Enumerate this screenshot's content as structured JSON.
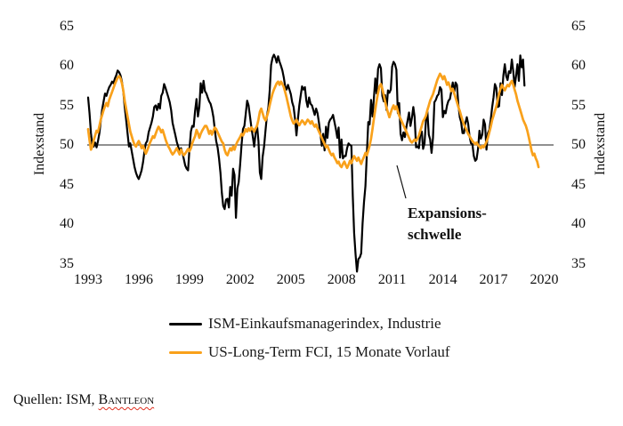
{
  "chart": {
    "annotation": {
      "line1": "Expansions-",
      "line2": "schwelle"
    },
    "legend": [
      {
        "label": "ISM-Einkaufsmanagerindex, Industrie",
        "color": "#000000"
      },
      {
        "label": "US-Long-Term FCI, 15 Monate Vorlauf",
        "color": "#F9A11B"
      }
    ],
    "source_prefix": "Quellen: ISM, ",
    "source_brand": "Bantleon"
  },
  "chart_data": {
    "type": "line",
    "title": "",
    "ylabel_left": "Indexstand",
    "ylabel_right": "Indexstand",
    "ylim": [
      35,
      65
    ],
    "xlim": [
      1993,
      2020.6
    ],
    "grid": false,
    "threshold": 50,
    "threshold_label": "Expansionsschwelle",
    "y_ticks": [
      65,
      60,
      55,
      50,
      45,
      40,
      35
    ],
    "x_ticks": [
      1993,
      1996,
      1999,
      2002,
      2005,
      2008,
      2011,
      2014,
      2017,
      2020
    ],
    "frequency": "monthly",
    "x_start": 1993.0,
    "series": [
      {
        "id": "ism",
        "name": "ISM-Einkaufsmanagerindex, Industrie",
        "color": "#000000",
        "start": "1993-01",
        "end": "2018-11",
        "values": [
          56.0,
          54.0,
          51.5,
          50.0,
          49.8,
          50.3,
          49.7,
          50.5,
          51.5,
          53.0,
          54.5,
          55.5,
          56.5,
          56.2,
          56.8,
          57.3,
          57.6,
          58.0,
          57.8,
          58.4,
          58.8,
          59.4,
          59.2,
          58.8,
          58.0,
          56.8,
          54.8,
          53.2,
          51.5,
          49.8,
          50.2,
          49.2,
          48.2,
          47.2,
          46.5,
          46.0,
          45.7,
          46.2,
          46.8,
          47.8,
          49.2,
          50.2,
          50.5,
          51.6,
          52.2,
          52.8,
          53.6,
          54.8,
          55.0,
          54.4,
          55.2,
          54.6,
          56.2,
          56.6,
          57.7,
          57.2,
          56.6,
          56.0,
          55.4,
          54.4,
          52.8,
          52.0,
          51.2,
          50.4,
          49.8,
          49.2,
          49.6,
          49.0,
          48.2,
          47.4,
          47.0,
          46.8,
          49.5,
          51.7,
          52.4,
          52.3,
          54.3,
          55.8,
          53.6,
          54.8,
          57.8,
          56.6,
          58.1,
          56.8,
          56.5,
          56.0,
          55.5,
          55.2,
          54.5,
          53.5,
          52.0,
          50.5,
          49.7,
          48.3,
          46.5,
          43.9,
          42.3,
          41.9,
          43.1,
          43.2,
          42.1,
          44.7,
          43.6,
          47.0,
          46.2,
          40.8,
          44.5,
          45.3,
          47.5,
          50.0,
          52.0,
          52.4,
          53.9,
          55.6,
          55.0,
          53.6,
          52.2,
          51.0,
          49.8,
          51.5,
          52.5,
          50.5,
          46.5,
          45.7,
          48.5,
          49.8,
          51.8,
          53.7,
          54.7,
          56.8,
          60.1,
          61.0,
          61.4,
          61.0,
          60.4,
          61.2,
          60.5,
          60.0,
          59.4,
          58.5,
          57.4,
          57.0,
          57.6,
          57.0,
          56.4,
          55.4,
          54.8,
          53.3,
          51.2,
          53.2,
          55.0,
          56.2,
          57.4,
          57.0,
          57.3,
          55.6,
          54.8,
          56.0,
          55.2,
          55.0,
          54.4,
          53.8,
          54.6,
          54.0,
          52.8,
          51.4,
          49.9,
          51.4,
          49.3,
          52.3,
          50.9,
          52.8,
          53.2,
          53.4,
          53.8,
          52.9,
          52.0,
          50.9,
          52.2,
          48.4,
          50.7,
          48.3,
          48.6,
          48.6,
          49.6,
          50.2,
          50.0,
          49.9,
          43.5,
          38.9,
          36.2,
          34.0,
          35.6,
          35.8,
          36.3,
          40.1,
          42.8,
          44.8,
          48.9,
          52.9,
          52.6,
          55.7,
          53.6,
          55.9,
          58.4,
          56.5,
          59.6,
          60.2,
          59.7,
          56.2,
          55.5,
          56.3,
          54.4,
          56.9,
          56.6,
          57.0,
          59.9,
          60.5,
          60.2,
          59.5,
          54.0,
          55.3,
          51.4,
          50.6,
          51.6,
          51.0,
          52.2,
          53.1,
          54.1,
          52.4,
          53.4,
          54.8,
          53.5,
          49.7,
          49.8,
          49.6,
          51.5,
          51.7,
          49.5,
          50.2,
          53.1,
          54.2,
          51.3,
          50.7,
          49.0,
          50.9,
          55.4,
          55.7,
          56.2,
          56.4,
          57.3,
          57.0,
          53.5,
          54.3,
          54.0,
          55.0,
          55.6,
          55.8,
          56.8,
          57.9,
          56.5,
          57.9,
          57.6,
          55.1,
          53.5,
          52.9,
          51.5,
          51.5,
          52.8,
          53.5,
          52.7,
          51.1,
          50.2,
          50.1,
          48.6,
          48.0,
          48.2,
          49.5,
          51.8,
          50.8,
          51.3,
          53.2,
          52.6,
          49.4,
          51.5,
          51.9,
          53.2,
          54.7,
          56.0,
          57.7,
          57.2,
          54.8,
          54.9,
          57.8,
          56.3,
          58.8,
          60.2,
          58.7,
          58.2,
          59.3,
          59.1,
          60.8,
          59.3,
          57.3,
          58.7,
          60.2,
          58.1,
          61.3,
          59.8,
          60.8,
          57.5
        ]
      },
      {
        "id": "fci",
        "name": "US-Long-Term FCI, 15 Monate Vorlauf",
        "color": "#F9A11B",
        "start": "1993-01",
        "end": "2019-09",
        "values": [
          52.0,
          50.6,
          49.4,
          49.8,
          50.6,
          51.2,
          51.8,
          51.6,
          52.4,
          53.2,
          53.8,
          54.4,
          54.9,
          55.3,
          54.9,
          55.7,
          56.2,
          56.7,
          57.2,
          57.7,
          58.1,
          58.5,
          58.7,
          58.4,
          57.8,
          56.9,
          55.6,
          54.6,
          53.6,
          52.6,
          51.7,
          51.1,
          50.5,
          50.0,
          49.8,
          50.2,
          50.5,
          50.1,
          49.6,
          49.9,
          49.4,
          48.9,
          49.3,
          49.8,
          50.3,
          50.7,
          51.1,
          50.9,
          51.4,
          51.9,
          52.3,
          52.0,
          51.6,
          51.9,
          51.3,
          50.7,
          50.2,
          49.8,
          49.5,
          49.1,
          48.8,
          49.0,
          49.3,
          49.6,
          49.2,
          48.8,
          49.4,
          49.0,
          48.7,
          48.9,
          49.2,
          49.5,
          49.2,
          49.6,
          50.2,
          50.7,
          51.1,
          51.9,
          51.5,
          50.9,
          51.4,
          51.8,
          52.1,
          52.4,
          52.4,
          52.0,
          51.4,
          51.8,
          51.3,
          51.8,
          52.2,
          52.0,
          51.6,
          51.2,
          50.8,
          50.4,
          50.2,
          49.4,
          48.9,
          48.7,
          49.2,
          49.6,
          49.3,
          49.8,
          49.4,
          50.0,
          50.4,
          50.7,
          51.0,
          51.4,
          51.2,
          51.6,
          52.0,
          51.7,
          52.1,
          51.8,
          52.2,
          52.0,
          51.7,
          52.1,
          52.4,
          53.2,
          54.2,
          54.6,
          54.0,
          53.4,
          53.1,
          53.6,
          54.2,
          55.0,
          55.8,
          56.5,
          57.0,
          57.4,
          57.8,
          58.0,
          57.6,
          58.0,
          57.7,
          57.3,
          56.7,
          56.0,
          55.2,
          54.4,
          53.6,
          53.1,
          52.7,
          52.9,
          53.2,
          52.8,
          52.5,
          52.8,
          53.1,
          52.9,
          52.6,
          52.9,
          53.2,
          53.0,
          52.7,
          53.0,
          52.6,
          52.3,
          52.6,
          52.1,
          51.7,
          51.3,
          50.9,
          50.5,
          50.1,
          49.7,
          49.9,
          49.4,
          49.0,
          48.7,
          48.9,
          48.4,
          48.1,
          47.7,
          47.9,
          47.4,
          47.2,
          47.6,
          47.9,
          47.5,
          47.1,
          47.5,
          48.0,
          47.7,
          48.2,
          48.6,
          48.3,
          48.0,
          48.4,
          48.0,
          47.6,
          48.1,
          48.5,
          49.0,
          48.7,
          49.3,
          49.9,
          50.8,
          52.0,
          53.3,
          54.5,
          55.6,
          56.6,
          57.4,
          57.7,
          57.1,
          56.3,
          55.5,
          54.7,
          54.1,
          53.5,
          54.1,
          54.6,
          55.0,
          54.5,
          54.9,
          54.3,
          53.7,
          53.3,
          52.9,
          52.5,
          52.1,
          51.7,
          51.3,
          50.9,
          50.5,
          50.3,
          50.5,
          50.7,
          50.5,
          50.8,
          51.2,
          51.8,
          52.4,
          53.0,
          53.3,
          53.7,
          54.4,
          55.0,
          55.6,
          56.0,
          56.4,
          57.0,
          57.6,
          58.2,
          58.6,
          59.0,
          58.7,
          58.3,
          58.7,
          58.2,
          57.6,
          57.9,
          57.4,
          56.8,
          57.1,
          56.6,
          56.0,
          55.4,
          54.8,
          54.3,
          53.7,
          53.1,
          52.6,
          52.2,
          51.8,
          51.4,
          51.1,
          50.8,
          50.5,
          50.3,
          50.1,
          50.3,
          50.0,
          49.8,
          49.6,
          49.9,
          49.7,
          50.0,
          50.4,
          50.9,
          51.6,
          52.3,
          53.1,
          53.7,
          54.3,
          54.9,
          55.7,
          56.5,
          57.1,
          57.6,
          57.2,
          56.9,
          57.3,
          57.6,
          57.4,
          57.8,
          58.1,
          57.6,
          57.0,
          56.4,
          55.6,
          55.0,
          54.4,
          53.8,
          53.2,
          52.8,
          52.4,
          51.8,
          51.0,
          50.2,
          49.3,
          48.7,
          48.9,
          48.3,
          47.9,
          47.2
        ]
      }
    ]
  }
}
